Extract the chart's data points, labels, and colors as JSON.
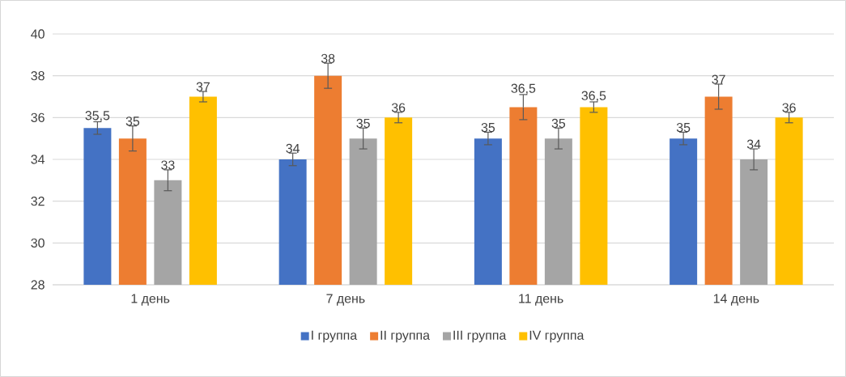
{
  "chart_data": {
    "type": "bar",
    "categories": [
      "1 день",
      "7 день",
      "11 день",
      "14 день"
    ],
    "series": [
      {
        "name": "I группа",
        "color": "#4472c4",
        "values": [
          35.5,
          34,
          35,
          35
        ],
        "errors": [
          0.3,
          0.3,
          0.3,
          0.3
        ],
        "value_labels": [
          "35,5",
          "34",
          "35",
          "35"
        ]
      },
      {
        "name": "II группа",
        "color": "#ed7d31",
        "values": [
          35,
          38,
          36.5,
          37
        ],
        "errors": [
          0.6,
          0.6,
          0.6,
          0.6
        ],
        "value_labels": [
          "35",
          "38",
          "36,5",
          "37"
        ]
      },
      {
        "name": "III группа",
        "color": "#a5a5a5",
        "values": [
          33,
          35,
          35,
          34
        ],
        "errors": [
          0.5,
          0.5,
          0.5,
          0.5
        ],
        "value_labels": [
          "33",
          "35",
          "35",
          "34"
        ]
      },
      {
        "name": "IV группа",
        "color": "#ffc000",
        "values": [
          37,
          36,
          36.5,
          36
        ],
        "errors": [
          0.25,
          0.25,
          0.25,
          0.25
        ],
        "value_labels": [
          "37",
          "36",
          "36,5",
          "36"
        ]
      }
    ],
    "ylim": [
      28,
      40
    ],
    "yticks": [
      28,
      30,
      32,
      34,
      36,
      38,
      40
    ],
    "grid": "y",
    "legend": "bottom"
  }
}
